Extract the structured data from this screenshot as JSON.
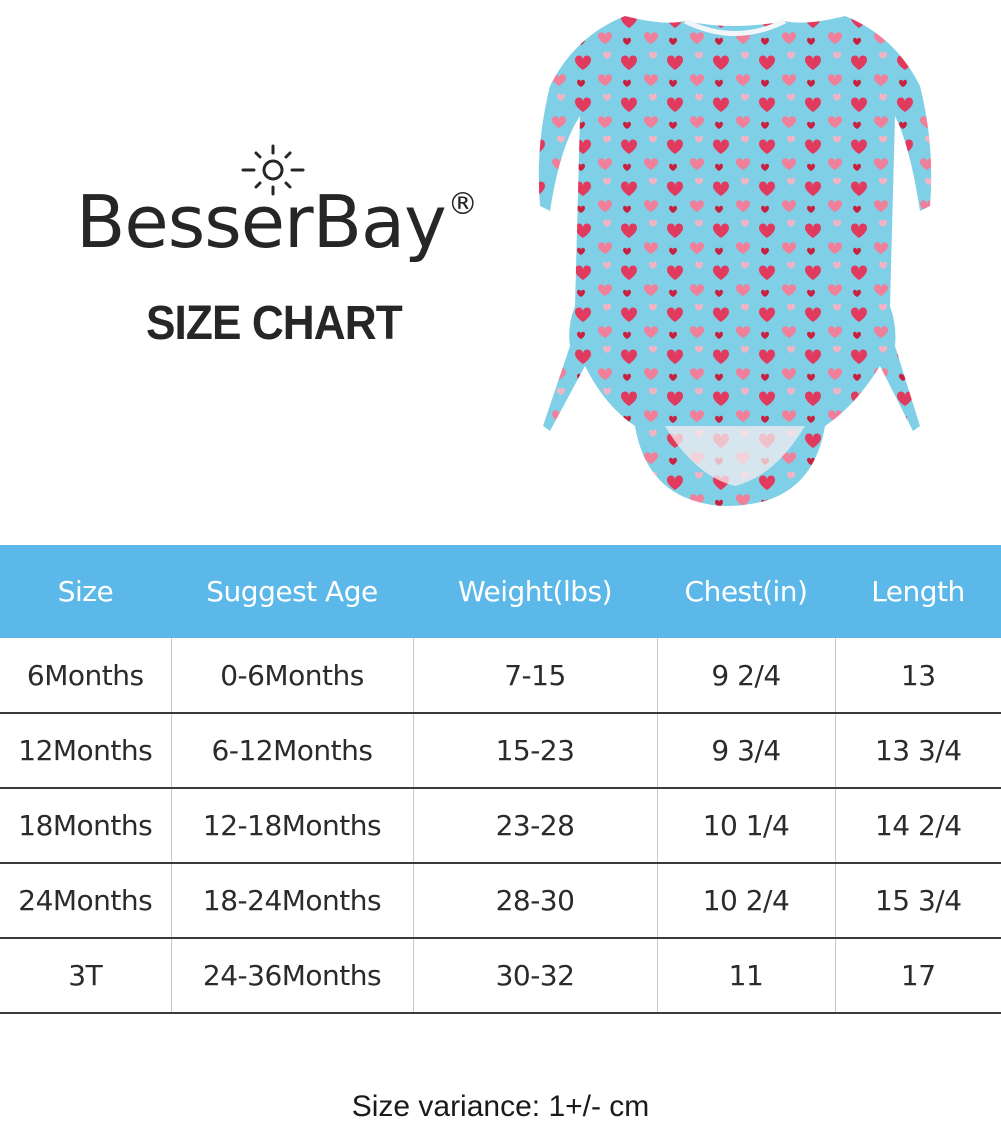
{
  "brand": {
    "name": "BesserBay",
    "mark": "®"
  },
  "title": "SIZE CHART",
  "icons": {
    "logo": "sun-icon",
    "product": "heart-print-swimsuit-illustration"
  },
  "colors": {
    "header_bg": "#5cb8e8",
    "header_text": "#ffffff",
    "swimsuit_bg": "#7fd0e6",
    "heart": "#e23a5e"
  },
  "table": {
    "headers": [
      "Size",
      "Suggest Age",
      "Weight(lbs)",
      "Chest(in)",
      "Length"
    ],
    "rows": [
      [
        "6Months",
        "0-6Months",
        "7-15",
        "9 2/4",
        "13"
      ],
      [
        "12Months",
        "6-12Months",
        "15-23",
        "9 3/4",
        "13 3/4"
      ],
      [
        "18Months",
        "12-18Months",
        "23-28",
        "10 1/4",
        "14 2/4"
      ],
      [
        "24Months",
        "18-24Months",
        "28-30",
        "10 2/4",
        "15 3/4"
      ],
      [
        "3T",
        "24-36Months",
        "30-32",
        "11",
        "17"
      ]
    ]
  },
  "footer": "Size variance: 1+/- cm"
}
